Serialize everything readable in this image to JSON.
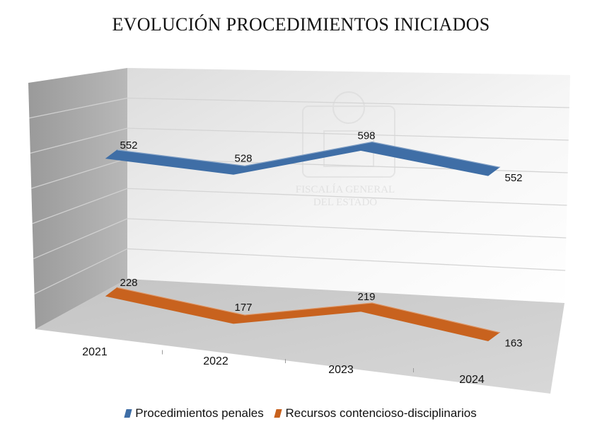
{
  "chart_data": {
    "type": "line",
    "title": "EVOLUCIÓN PROCEDIMIENTOS INICIADOS",
    "categories": [
      "2021",
      "2022",
      "2023",
      "2024"
    ],
    "series": [
      {
        "name": "Procedimientos penales",
        "values": [
          552,
          528,
          598,
          552
        ],
        "color": "#3f6ea6"
      },
      {
        "name": "Recursos contencioso-disciplinarios",
        "values": [
          228,
          177,
          219,
          163
        ],
        "color": "#c8621e"
      }
    ],
    "style": "3d",
    "legend": "bottom",
    "grid": true
  },
  "watermark": {
    "lines": [
      "FISCALÍA GENERAL",
      "DEL ESTADO"
    ]
  }
}
